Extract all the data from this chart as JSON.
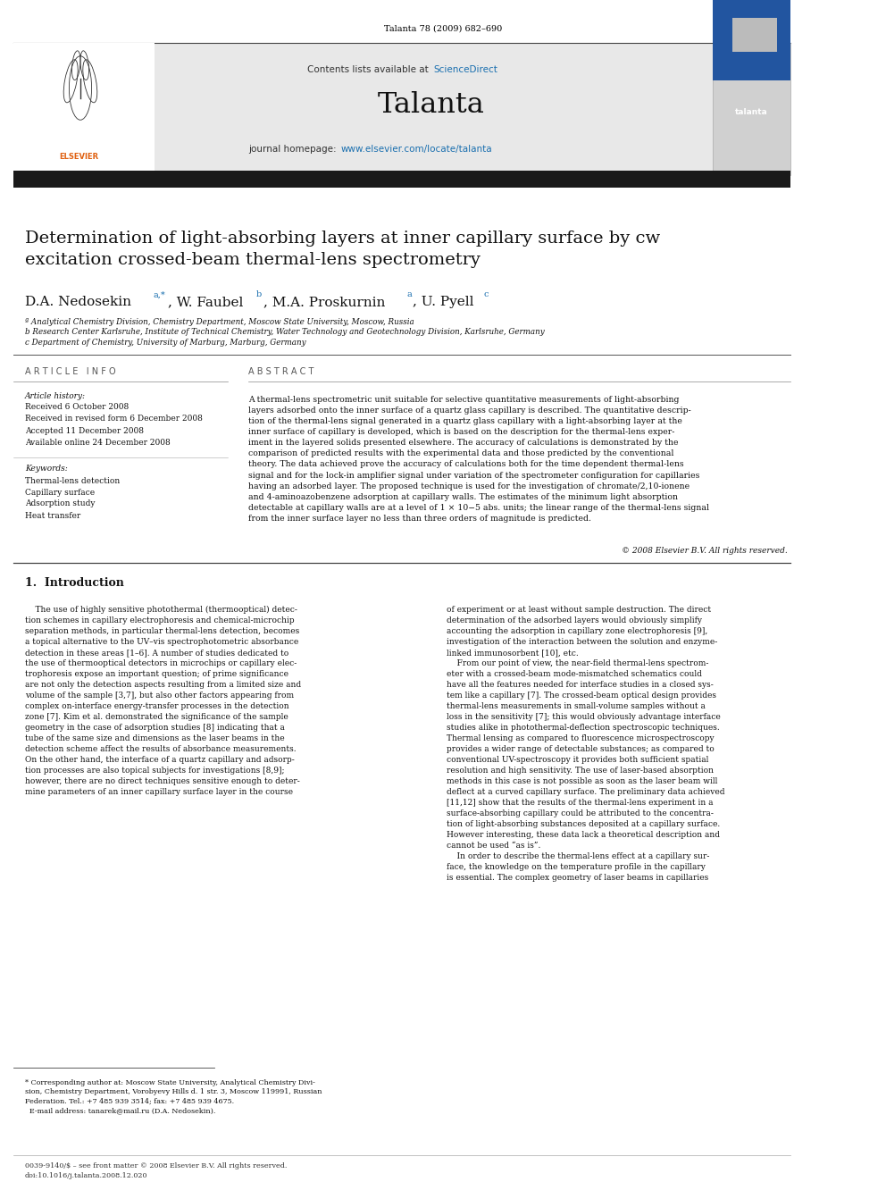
{
  "page_width": 9.92,
  "page_height": 13.23,
  "background_color": "#ffffff",
  "journal_ref": "Talanta 78 (2009) 682–690",
  "journal_ref_color": "#000000",
  "sciencedirect_color": "#1a6faf",
  "journal_url_color": "#1a6faf",
  "title": "Determination of light-absorbing layers at inner capillary surface by cw\nexcitation crossed-beam thermal-lens spectrometry",
  "affil_a": "ª Analytical Chemistry Division, Chemistry Department, Moscow State University, Moscow, Russia",
  "affil_b": "b Research Center Karlsruhe, Institute of Technical Chemistry, Water Technology and Geotechnology Division, Karlsruhe, Germany",
  "affil_c": "c Department of Chemistry, University of Marburg, Marburg, Germany",
  "article_info_label": "A R T I C L E   I N F O",
  "abstract_label": "A B S T R A C T",
  "article_history_label": "Article history:",
  "received1": "Received 6 October 2008",
  "received2": "Received in revised form 6 December 2008",
  "accepted": "Accepted 11 December 2008",
  "available": "Available online 24 December 2008",
  "keywords_label": "Keywords:",
  "kw1": "Thermal-lens detection",
  "kw2": "Capillary surface",
  "kw3": "Adsorption study",
  "kw4": "Heat transfer",
  "abstract_text": "A thermal-lens spectrometric unit suitable for selective quantitative measurements of light-absorbing\nlayers adsorbed onto the inner surface of a quartz glass capillary is described. The quantitative descrip-\ntion of the thermal-lens signal generated in a quartz glass capillary with a light-absorbing layer at the\ninner surface of capillary is developed, which is based on the description for the thermal-lens exper-\niment in the layered solids presented elsewhere. The accuracy of calculations is demonstrated by the\ncomparison of predicted results with the experimental data and those predicted by the conventional\ntheory. The data achieved prove the accuracy of calculations both for the time dependent thermal-lens\nsignal and for the lock-in amplifier signal under variation of the spectrometer configuration for capillaries\nhaving an adsorbed layer. The proposed technique is used for the investigation of chromate/2,10-ionene\nand 4-aminoazobenzene adsorption at capillary walls. The estimates of the minimum light absorption\ndetectable at capillary walls are at a level of 1 × 10−5 abs. units; the linear range of the thermal-lens signal\nfrom the inner surface layer no less than three orders of magnitude is predicted.",
  "copyright": "© 2008 Elsevier B.V. All rights reserved.",
  "intro_heading": "1.  Introduction",
  "intro_col1": "    The use of highly sensitive photothermal (thermooptical) detec-\ntion schemes in capillary electrophoresis and chemical-microchip\nseparation methods, in particular thermal-lens detection, becomes\na topical alternative to the UV–vis spectrophotometric absorbance\ndetection in these areas [1–6]. A number of studies dedicated to\nthe use of thermooptical detectors in microchips or capillary elec-\ntrophoresis expose an important question; of prime significance\nare not only the detection aspects resulting from a limited size and\nvolume of the sample [3,7], but also other factors appearing from\ncomplex on-interface energy-transfer processes in the detection\nzone [7]. Kim et al. demonstrated the significance of the sample\ngeometry in the case of adsorption studies [8] indicating that a\ntube of the same size and dimensions as the laser beams in the\ndetection scheme affect the results of absorbance measurements.\nOn the other hand, the interface of a quartz capillary and adsorp-\ntion processes are also topical subjects for investigations [8,9];\nhowever, there are no direct techniques sensitive enough to deter-\nmine parameters of an inner capillary surface layer in the course",
  "intro_col2": "of experiment or at least without sample destruction. The direct\ndetermination of the adsorbed layers would obviously simplify\naccounting the adsorption in capillary zone electrophoresis [9],\ninvestigation of the interaction between the solution and enzyme-\nlinked immunosorbent [10], etc.\n    From our point of view, the near-field thermal-lens spectrom-\neter with a crossed-beam mode-mismatched schematics could\nhave all the features needed for interface studies in a closed sys-\ntem like a capillary [7]. The crossed-beam optical design provides\nthermal-lens measurements in small-volume samples without a\nloss in the sensitivity [7]; this would obviously advantage interface\nstudies alike in photothermal-deflection spectroscopic techniques.\nThermal lensing as compared to fluorescence microspectroscopy\nprovides a wider range of detectable substances; as compared to\nconventional UV-spectroscopy it provides both sufficient spatial\nresolution and high sensitivity. The use of laser-based absorption\nmethods in this case is not possible as soon as the laser beam will\ndeflect at a curved capillary surface. The preliminary data achieved\n[11,12] show that the results of the thermal-lens experiment in a\nsurface-absorbing capillary could be attributed to the concentra-\ntion of light-absorbing substances deposited at a capillary surface.\nHowever interesting, these data lack a theoretical description and\ncannot be used “as is”.\n    In order to describe the thermal-lens effect at a capillary sur-\nface, the knowledge on the temperature profile in the capillary\nis essential. The complex geometry of laser beams in capillaries",
  "footnote_star": "* Corresponding author at: Moscow State University, Analytical Chemistry Divi-\nsion, Chemistry Department, Vorobyevy Hills d. 1 str. 3, Moscow 119991, Russian\nFederation. Tel.: +7 485 939 3514; fax: +7 485 939 4675.\n  E-mail address: tanarek@mail.ru (D.A. Nedosekin).",
  "footer_left": "0039-9140/$ – see front matter © 2008 Elsevier B.V. All rights reserved.",
  "footer_doi": "doi:10.1016/j.talanta.2008.12.020"
}
